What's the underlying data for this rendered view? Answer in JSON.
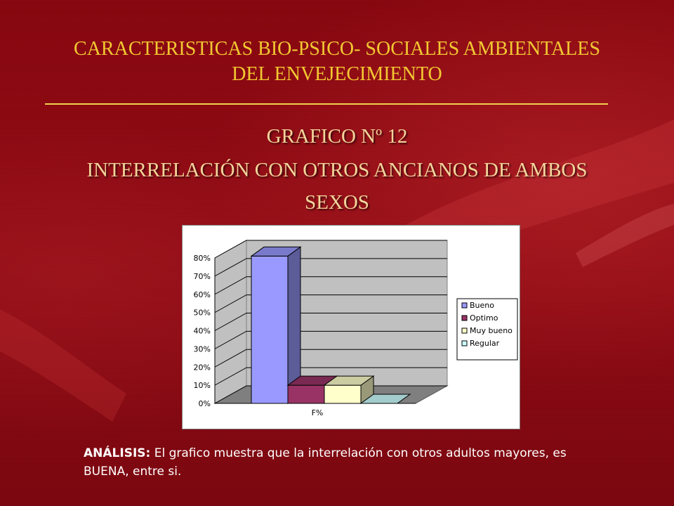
{
  "slide": {
    "header_title_line1": "CARACTERISTICAS BIO-PSICO- SOCIALES AMBIENTALES",
    "header_title_line2": "DEL ENVEJECIMIENTO",
    "subtitle_line1": "GRAFICO Nº 12",
    "subtitle_line2": "INTERRELACIÓN CON OTROS ANCIANOS DE AMBOS",
    "subtitle_line3": "SEXOS",
    "analysis_label": "ANÁLISIS:",
    "analysis_text": " El grafico muestra  que la interrelación con otros adultos mayores, es BUENA, entre si."
  },
  "colors": {
    "background": "#8e0a12",
    "title": "#f2c832",
    "subtitle": "#f3d49a"
  },
  "chart_data": {
    "type": "bar",
    "x_category": "F%",
    "series": [
      {
        "name": "Bueno",
        "value": 81,
        "color": "#9999ff"
      },
      {
        "name": "Optimo",
        "value": 10,
        "color": "#993366"
      },
      {
        "name": "Muy bueno",
        "value": 10,
        "color": "#ffffcc"
      },
      {
        "name": "Regular",
        "value": 0,
        "color": "#ccffff"
      }
    ],
    "y_ticks": [
      "0%",
      "10%",
      "20%",
      "30%",
      "40%",
      "50%",
      "60%",
      "70%",
      "80%"
    ],
    "ylim": [
      0,
      80
    ],
    "grid": true,
    "legend_position": "right"
  }
}
